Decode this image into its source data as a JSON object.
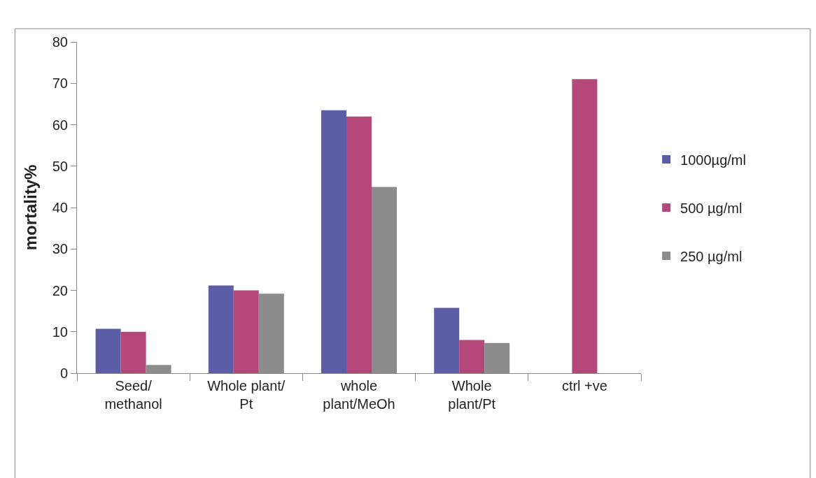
{
  "chart_data": {
    "type": "bar",
    "ylabel": "mortality%",
    "categories": [
      "Seed/\nmethanol",
      "Whole plant/\nPt",
      "whole\nplant/MeOh",
      "Whole\nplant/Pt",
      "ctrl +ve"
    ],
    "series": [
      {
        "name": "1000µg/ml",
        "color": "#5b5ea6",
        "values": [
          10.7,
          21.2,
          63.5,
          15.8,
          null
        ]
      },
      {
        "name": "500 µg/ml",
        "color": "#b5487a",
        "values": [
          10,
          20,
          62,
          8,
          71
        ]
      },
      {
        "name": "250 µg/ml",
        "color": "#8c8c8c",
        "values": [
          2,
          19.2,
          45,
          7.3,
          null
        ]
      }
    ],
    "ylim": [
      0,
      80
    ],
    "yticks": [
      0,
      10,
      20,
      30,
      40,
      50,
      60,
      70,
      80
    ],
    "grid": false,
    "legend": "right"
  }
}
